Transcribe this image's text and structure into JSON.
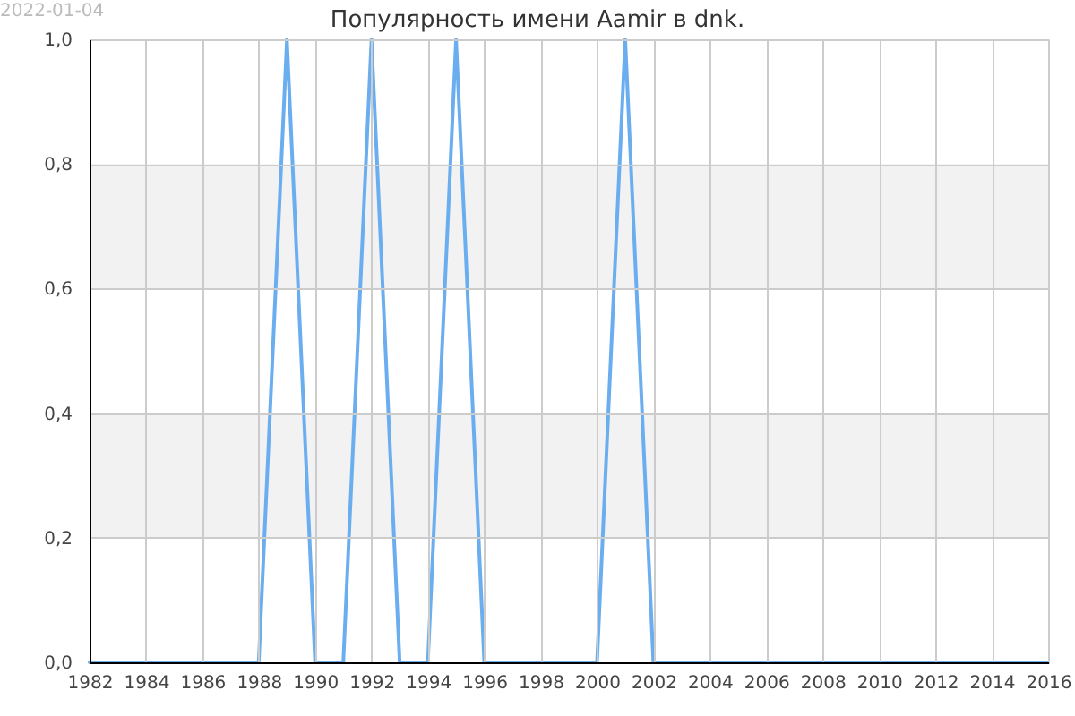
{
  "chart_data": {
    "type": "line",
    "title": "Популярность имени Aamir в dnk.",
    "annotations": [
      "2022-01-04"
    ],
    "x": [
      1982,
      1983,
      1984,
      1985,
      1986,
      1987,
      1988,
      1989,
      1990,
      1991,
      1992,
      1993,
      1994,
      1995,
      1996,
      1997,
      1998,
      1999,
      2000,
      2001,
      2002,
      2003,
      2004,
      2005,
      2006,
      2007,
      2008,
      2009,
      2010,
      2011,
      2012,
      2013,
      2014,
      2015,
      2016
    ],
    "series": [
      {
        "color": "#6aaef0",
        "values": [
          0,
          0,
          0,
          0,
          0,
          0,
          0,
          1,
          0,
          0,
          1,
          0,
          0,
          1,
          0,
          0,
          0,
          0,
          0,
          1,
          0,
          0,
          0,
          0,
          0,
          0,
          0,
          0,
          0,
          0,
          0,
          0,
          0,
          0,
          0
        ]
      }
    ],
    "xlim": [
      1982,
      2016
    ],
    "xticks": [
      1982,
      1984,
      1986,
      1988,
      1990,
      1992,
      1994,
      1996,
      1998,
      2000,
      2002,
      2004,
      2006,
      2008,
      2010,
      2012,
      2014,
      2016
    ],
    "ylim": [
      0,
      1
    ],
    "yticks": [
      {
        "value": 0,
        "label": "0,0"
      },
      {
        "value": 0.2,
        "label": "0,2"
      },
      {
        "value": 0.4,
        "label": "0,4"
      },
      {
        "value": 0.6,
        "label": "0,6"
      },
      {
        "value": 0.8,
        "label": "0,8"
      },
      {
        "value": 1,
        "label": "1,0"
      }
    ],
    "bands": [
      {
        "axis": "y",
        "from": 0.2,
        "to": 0.4,
        "color": "#f2f2f2"
      },
      {
        "axis": "y",
        "from": 0.6,
        "to": 0.8,
        "color": "#f2f2f2"
      }
    ],
    "grid": true,
    "marker": "none",
    "line_style": "solid"
  }
}
